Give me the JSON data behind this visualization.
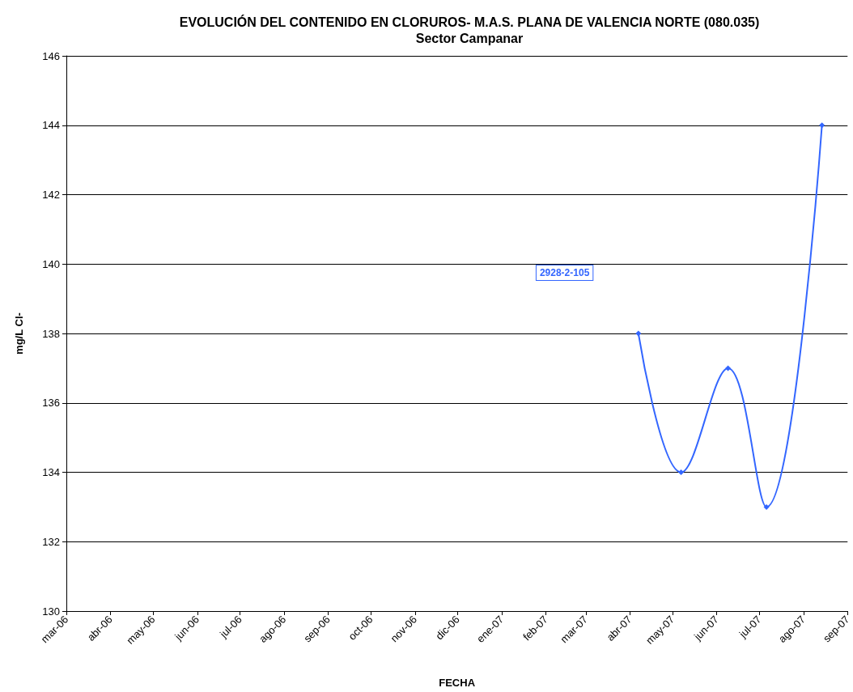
{
  "chart_data": {
    "type": "line",
    "title": "EVOLUCIÓN DEL CONTENIDO EN CLORUROS- M.A.S. PLANA DE VALENCIA NORTE (080.035)",
    "subtitle": "Sector Campanar",
    "xlabel": "FECHA",
    "ylabel": "mg/L Cl-",
    "x": [
      "2007-04-07",
      "2007-05-07",
      "2007-06-09",
      "2007-07-06",
      "2007-08-14"
    ],
    "series": [
      {
        "name": "2928-2-105",
        "color": "#3366ff",
        "values": [
          138,
          134,
          137,
          133,
          144
        ]
      }
    ],
    "xlim": [
      "2006-03-01",
      "2007-09-01"
    ],
    "xticks": [
      {
        "value": "2006-03-01",
        "label": "mar-06"
      },
      {
        "value": "2006-04-01",
        "label": "abr-06"
      },
      {
        "value": "2006-05-01",
        "label": "may-06"
      },
      {
        "value": "2006-06-01",
        "label": "jun-06"
      },
      {
        "value": "2006-07-01",
        "label": "jul-06"
      },
      {
        "value": "2006-08-01",
        "label": "ago-06"
      },
      {
        "value": "2006-09-01",
        "label": "sep-06"
      },
      {
        "value": "2006-10-01",
        "label": "oct-06"
      },
      {
        "value": "2006-11-01",
        "label": "nov-06"
      },
      {
        "value": "2006-12-01",
        "label": "dic-06"
      },
      {
        "value": "2007-01-01",
        "label": "ene-07"
      },
      {
        "value": "2007-02-01",
        "label": "feb-07"
      },
      {
        "value": "2007-03-01",
        "label": "mar-07"
      },
      {
        "value": "2007-04-01",
        "label": "abr-07"
      },
      {
        "value": "2007-05-01",
        "label": "may-07"
      },
      {
        "value": "2007-06-01",
        "label": "jun-07"
      },
      {
        "value": "2007-07-01",
        "label": "jul-07"
      },
      {
        "value": "2007-08-01",
        "label": "ago-07"
      },
      {
        "value": "2007-09-01",
        "label": "sep-07"
      }
    ],
    "ylim": [
      130,
      146
    ],
    "yticks": [
      130,
      132,
      134,
      136,
      138,
      140,
      142,
      144,
      146
    ],
    "grid": "y",
    "legend": false,
    "marker": "diamond",
    "line_style": "solid"
  }
}
